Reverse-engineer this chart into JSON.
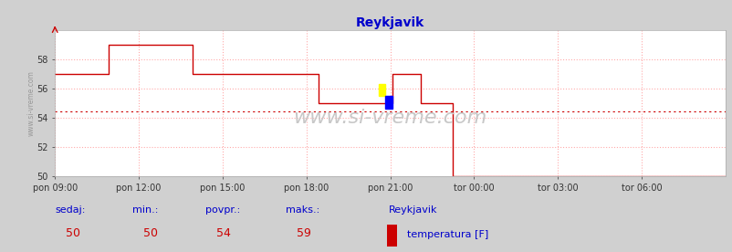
{
  "title": "Reykjavik",
  "title_color": "#0000cc",
  "bg_color": "#d0d0d0",
  "plot_bg_color": "#ffffff",
  "line_color": "#cc0000",
  "avg_line_color": "#cc0000",
  "watermark": "www.si-vreme.com",
  "watermark_color": "#c8c8c8",
  "ylabel_text": "www.si-vreme.com",
  "x_labels": [
    "pon 09:00",
    "pon 12:00",
    "pon 15:00",
    "pon 18:00",
    "pon 21:00",
    "tor 00:00",
    "tor 03:00",
    "tor 06:00"
  ],
  "x_ticks_pos": [
    0,
    180,
    360,
    540,
    720,
    900,
    1080,
    1260
  ],
  "total_minutes": 1440,
  "ylim": [
    50,
    60
  ],
  "yticks": [
    50,
    52,
    54,
    56,
    58
  ],
  "avg_value": 54.45,
  "sedaj": 50,
  "min_val": 50,
  "povpr_val": 54,
  "maks_val": 59,
  "legend_label": "temperatura [F]",
  "legend_station": "Reykjavik",
  "legend_color": "#cc0000",
  "footer_label_color": "#0000cc",
  "footer_value_color": "#cc0000",
  "grid_color": "#ffaaaa",
  "time_series": [
    [
      0,
      57
    ],
    [
      100,
      57
    ],
    [
      115,
      59
    ],
    [
      280,
      59
    ],
    [
      295,
      57
    ],
    [
      550,
      57
    ],
    [
      565,
      55
    ],
    [
      710,
      55
    ],
    [
      725,
      57
    ],
    [
      785,
      55
    ],
    [
      845,
      55
    ],
    [
      855,
      50
    ],
    [
      1440,
      50
    ]
  ],
  "marker_x": 710,
  "marker_y": 55.5
}
